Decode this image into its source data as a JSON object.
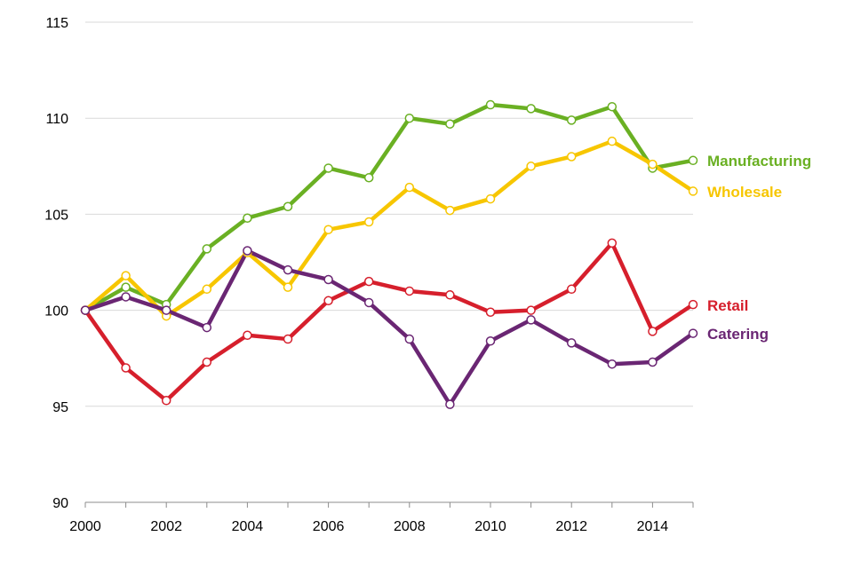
{
  "chart_data": {
    "type": "line",
    "x": [
      2000,
      2001,
      2002,
      2003,
      2004,
      2005,
      2006,
      2007,
      2008,
      2009,
      2010,
      2011,
      2012,
      2013,
      2014,
      2015
    ],
    "x_tick_labels": [
      "2000",
      "2002",
      "2004",
      "2006",
      "2008",
      "2010",
      "2012",
      "2014"
    ],
    "y_tick_labels": [
      "90",
      "95",
      "100",
      "105",
      "110",
      "115"
    ],
    "ylim": [
      90,
      115
    ],
    "xlim": [
      2000,
      2015
    ],
    "grid": "horizontal",
    "legend": "inline-right",
    "series": [
      {
        "name": "Manufacturing",
        "color": "#6ab023",
        "values": [
          100,
          101.2,
          100.3,
          103.2,
          104.8,
          105.4,
          107.4,
          106.9,
          110.0,
          109.7,
          110.7,
          110.5,
          109.9,
          110.6,
          107.4,
          107.8
        ]
      },
      {
        "name": "Wholesale",
        "color": "#f7c600",
        "values": [
          100,
          101.8,
          99.7,
          101.1,
          103.0,
          101.2,
          104.2,
          104.6,
          106.4,
          105.2,
          105.8,
          107.5,
          108.0,
          108.8,
          107.6,
          106.2
        ]
      },
      {
        "name": "Retail",
        "color": "#d61f2c",
        "values": [
          100,
          97.0,
          95.3,
          97.3,
          98.7,
          98.5,
          100.5,
          101.5,
          101.0,
          100.8,
          99.9,
          100.0,
          101.1,
          103.5,
          98.9,
          100.3
        ]
      },
      {
        "name": "Catering",
        "color": "#6a2673",
        "values": [
          100,
          100.7,
          100.0,
          99.1,
          103.1,
          102.1,
          101.6,
          100.4,
          98.5,
          95.1,
          98.4,
          99.5,
          98.3,
          97.2,
          97.3,
          98.8
        ]
      }
    ]
  }
}
